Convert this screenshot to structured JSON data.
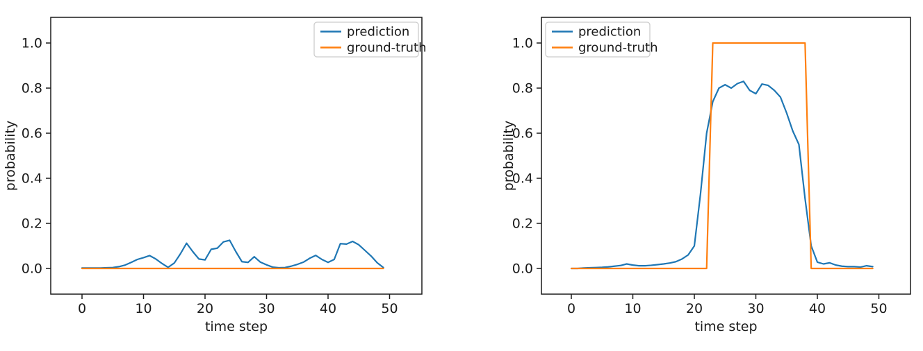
{
  "page": {
    "background": "#ffffff"
  },
  "colors": {
    "prediction": "#1f77b4",
    "ground_truth": "#ff7f0e",
    "spine": "#1a1a1a",
    "text": "#1a1a1a",
    "legend_border": "#cccccc",
    "legend_fill": "#ffffff"
  },
  "chart_data": [
    {
      "type": "line",
      "title": "",
      "xlabel": "time step",
      "ylabel": "probability",
      "xticks": [
        0,
        10,
        20,
        30,
        40,
        50
      ],
      "yticks": [
        0.0,
        0.2,
        0.4,
        0.6,
        0.8,
        1.0
      ],
      "xlim": [
        -5,
        55
      ],
      "ylim": [
        -0.12,
        1.12
      ],
      "grid": false,
      "legend_position": "upper-right",
      "x": [
        0,
        1,
        2,
        3,
        4,
        5,
        6,
        7,
        8,
        9,
        10,
        11,
        12,
        13,
        14,
        15,
        16,
        17,
        18,
        19,
        20,
        21,
        22,
        23,
        24,
        25,
        26,
        27,
        28,
        29,
        30,
        31,
        32,
        33,
        34,
        35,
        36,
        37,
        38,
        39,
        40,
        41,
        42,
        43,
        44,
        45,
        46,
        47,
        48,
        49
      ],
      "series": [
        {
          "name": "prediction",
          "color": "#1f77b4",
          "values": [
            0.002,
            0.002,
            0.002,
            0.002,
            0.003,
            0.004,
            0.008,
            0.015,
            0.027,
            0.04,
            0.048,
            0.057,
            0.042,
            0.022,
            0.005,
            0.024,
            0.065,
            0.112,
            0.075,
            0.042,
            0.038,
            0.085,
            0.09,
            0.118,
            0.125,
            0.075,
            0.03,
            0.027,
            0.052,
            0.028,
            0.016,
            0.006,
            0.003,
            0.004,
            0.01,
            0.018,
            0.028,
            0.045,
            0.058,
            0.04,
            0.027,
            0.04,
            0.11,
            0.108,
            0.12,
            0.105,
            0.08,
            0.055,
            0.025,
            0.004
          ]
        },
        {
          "name": "ground-truth",
          "color": "#ff7f0e",
          "values": [
            0,
            0,
            0,
            0,
            0,
            0,
            0,
            0,
            0,
            0,
            0,
            0,
            0,
            0,
            0,
            0,
            0,
            0,
            0,
            0,
            0,
            0,
            0,
            0,
            0,
            0,
            0,
            0,
            0,
            0,
            0,
            0,
            0,
            0,
            0,
            0,
            0,
            0,
            0,
            0,
            0,
            0,
            0,
            0,
            0,
            0,
            0,
            0,
            0,
            0
          ]
        }
      ]
    },
    {
      "type": "line",
      "title": "",
      "xlabel": "time step",
      "ylabel": "probability",
      "xticks": [
        0,
        10,
        20,
        30,
        40,
        50
      ],
      "yticks": [
        0.0,
        0.2,
        0.4,
        0.6,
        0.8,
        1.0
      ],
      "xlim": [
        -5,
        55
      ],
      "ylim": [
        -0.12,
        1.12
      ],
      "grid": false,
      "legend_position": "upper-left",
      "x": [
        0,
        1,
        2,
        3,
        4,
        5,
        6,
        7,
        8,
        9,
        10,
        11,
        12,
        13,
        14,
        15,
        16,
        17,
        18,
        19,
        20,
        21,
        22,
        23,
        24,
        25,
        26,
        27,
        28,
        29,
        30,
        31,
        32,
        33,
        34,
        35,
        36,
        37,
        38,
        39,
        40,
        41,
        42,
        43,
        44,
        45,
        46,
        47,
        48,
        49
      ],
      "series": [
        {
          "name": "prediction",
          "color": "#1f77b4",
          "values": [
            0.0,
            0.0,
            0.002,
            0.003,
            0.004,
            0.005,
            0.007,
            0.01,
            0.013,
            0.02,
            0.015,
            0.012,
            0.012,
            0.014,
            0.017,
            0.02,
            0.024,
            0.03,
            0.042,
            0.06,
            0.1,
            0.33,
            0.6,
            0.74,
            0.8,
            0.815,
            0.8,
            0.82,
            0.83,
            0.79,
            0.775,
            0.818,
            0.812,
            0.79,
            0.76,
            0.69,
            0.61,
            0.55,
            0.31,
            0.1,
            0.028,
            0.02,
            0.025,
            0.015,
            0.01,
            0.008,
            0.008,
            0.006,
            0.012,
            0.008
          ]
        },
        {
          "name": "ground-truth",
          "color": "#ff7f0e",
          "values": [
            0,
            0,
            0,
            0,
            0,
            0,
            0,
            0,
            0,
            0,
            0,
            0,
            0,
            0,
            0,
            0,
            0,
            0,
            0,
            0,
            0,
            0,
            0,
            1,
            1,
            1,
            1,
            1,
            1,
            1,
            1,
            1,
            1,
            1,
            1,
            1,
            1,
            1,
            1,
            0,
            0,
            0,
            0,
            0,
            0,
            0,
            0,
            0,
            0,
            0
          ]
        }
      ]
    }
  ]
}
